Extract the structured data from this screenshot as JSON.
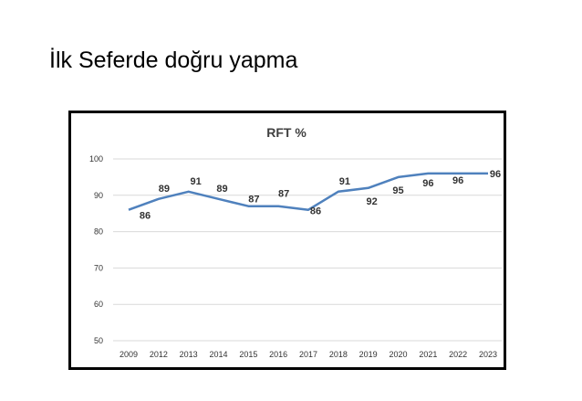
{
  "slide": {
    "title": "İlk Seferde doğru yapma"
  },
  "chart_data": {
    "type": "line",
    "title": "RFT %",
    "xlabel": "",
    "ylabel": "",
    "categories": [
      "2009",
      "2012",
      "2013",
      "2014",
      "2015",
      "2016",
      "2017",
      "2018",
      "2019",
      "2020",
      "2021",
      "2022",
      "2023"
    ],
    "series": [
      {
        "values": [
          86,
          89,
          91,
          89,
          87,
          87,
          86,
          91,
          92,
          95,
          96,
          96,
          96
        ],
        "color": "#4f81bd"
      }
    ],
    "data_labels": [
      "86",
      "89",
      "91",
      "89",
      "87",
      "87",
      "86",
      "91",
      "92",
      "95",
      "96",
      "96",
      "96"
    ],
    "yticks": [
      50,
      60,
      70,
      80,
      90,
      100
    ],
    "ytick_labels": [
      "50",
      "60",
      "70",
      "80",
      "90",
      "100"
    ],
    "ylim": [
      50,
      100
    ],
    "grid": true,
    "legend": "none"
  }
}
